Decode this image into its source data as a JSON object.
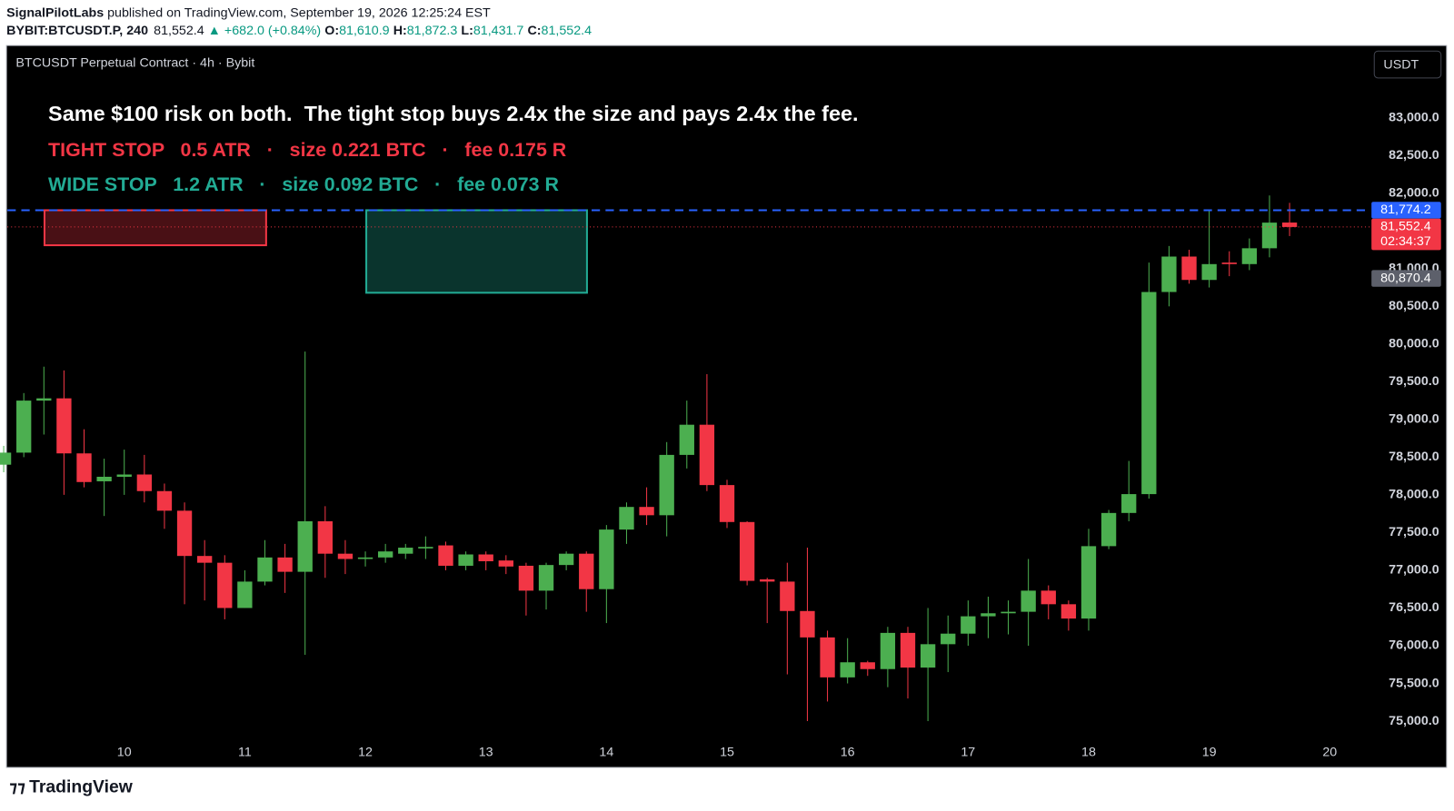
{
  "header": {
    "author": "SignalPilotLabs",
    "published": " published on TradingView.com, September 19, 2026 12:25:24 EST",
    "symbol": "BYBIT:BTCUSDT.P, 240",
    "last": "81,552.4",
    "change": "▲ +682.0 (+0.84%)",
    "ohlc": [
      {
        "label": "O:",
        "value": "81,610.9"
      },
      {
        "label": "H:",
        "value": "81,872.3"
      },
      {
        "label": "L:",
        "value": "81,431.7"
      },
      {
        "label": "C:",
        "value": "81,552.4"
      }
    ]
  },
  "chart_data": {
    "type": "candlestick",
    "title": "BTCUSDT Perpetual Contract · 4h · Bybit",
    "currency": "USDT",
    "categories": [
      null,
      null,
      null,
      null,
      null,
      null,
      "10",
      null,
      null,
      null,
      null,
      null,
      "11",
      null,
      null,
      null,
      null,
      null,
      "12",
      null,
      null,
      null,
      null,
      null,
      "13",
      null,
      null,
      null,
      null,
      null,
      "14",
      null,
      null,
      null,
      null,
      null,
      "15",
      null,
      null,
      null,
      null,
      null,
      "16",
      null,
      null,
      null,
      null,
      null,
      "17",
      null,
      null,
      null,
      null,
      null,
      "18",
      null,
      null,
      null,
      null,
      null,
      "19",
      null,
      null,
      null,
      null,
      null,
      "20"
    ],
    "open": [
      78400,
      78560,
      79250,
      79280,
      78550,
      78180,
      78240,
      78270,
      78050,
      77790,
      77190,
      77100,
      76500,
      76850,
      77170,
      76980,
      77650,
      77220,
      77150,
      77170,
      77220,
      77290,
      77330,
      77060,
      77210,
      77130,
      77060,
      76730,
      77070,
      77220,
      76750,
      77540,
      77840,
      77730,
      78530,
      78930,
      78130,
      77640,
      76880,
      76850,
      76460,
      76110,
      75580,
      75780,
      75690,
      76170,
      75710,
      76020,
      76160,
      76390,
      76430,
      76450,
      76730,
      76550,
      76360,
      77320,
      77760,
      78010,
      80690,
      81160,
      80850,
      81080,
      81060,
      81270,
      81610.9,
      null,
      null
    ],
    "high": [
      78650,
      79350,
      79700,
      79650,
      78870,
      78480,
      78600,
      78530,
      78150,
      77900,
      77400,
      77200,
      77000,
      77400,
      77350,
      79900,
      77850,
      77400,
      77250,
      77350,
      77350,
      77450,
      77380,
      77250,
      77250,
      77200,
      77100,
      77100,
      77250,
      77250,
      77600,
      77900,
      78100,
      78700,
      79250,
      79600,
      78200,
      77650,
      76900,
      77100,
      77300,
      76200,
      76100,
      75800,
      76250,
      76250,
      76500,
      76400,
      76600,
      76650,
      76600,
      77150,
      76800,
      76600,
      77550,
      77800,
      78450,
      81080,
      81300,
      81250,
      81770,
      81230,
      81400,
      81970,
      81872.3,
      null,
      null
    ],
    "low": [
      78300,
      78500,
      78800,
      78000,
      78100,
      77720,
      78000,
      77900,
      77550,
      76550,
      76600,
      76350,
      76500,
      76800,
      76700,
      75880,
      76900,
      76950,
      77050,
      77100,
      77150,
      77150,
      77000,
      77000,
      77000,
      76950,
      76400,
      76480,
      77000,
      76450,
      76300,
      77350,
      77600,
      77450,
      78350,
      78050,
      77560,
      76800,
      76300,
      75620,
      75000,
      75260,
      75500,
      75600,
      75450,
      75300,
      75000,
      75650,
      76000,
      76100,
      76150,
      76000,
      76350,
      76200,
      76200,
      77280,
      77650,
      77950,
      80500,
      80800,
      80750,
      80900,
      80980,
      81150,
      81431.7,
      null,
      null
    ],
    "close": [
      78560,
      79250,
      79280,
      78550,
      78170,
      78240,
      78270,
      78050,
      77790,
      77190,
      77100,
      76500,
      76850,
      77170,
      76980,
      77650,
      77220,
      77150,
      77170,
      77250,
      77300,
      77310,
      77060,
      77210,
      77120,
      77050,
      76730,
      77070,
      77220,
      76750,
      77540,
      77840,
      77730,
      78530,
      78930,
      78130,
      77640,
      76860,
      76850,
      76460,
      76110,
      75580,
      75780,
      75690,
      76170,
      75710,
      76020,
      76160,
      76390,
      76430,
      76450,
      76730,
      76550,
      76360,
      77320,
      77760,
      78010,
      80690,
      81160,
      80850,
      81060,
      81060,
      81270,
      81610,
      81552.4,
      null,
      null
    ],
    "up_color": "#4caf50",
    "down_color": "#f23645",
    "ylim": [
      74386,
      83946
    ],
    "yticks": [
      {
        "value": 75000,
        "label": "75,000.0"
      },
      {
        "value": 75500,
        "label": "75,500.0"
      },
      {
        "value": 76000,
        "label": "76,000.0"
      },
      {
        "value": 76500,
        "label": "76,500.0"
      },
      {
        "value": 77000,
        "label": "77,000.0"
      },
      {
        "value": 77500,
        "label": "77,500.0"
      },
      {
        "value": 78000,
        "label": "78,000.0"
      },
      {
        "value": 78500,
        "label": "78,500.0"
      },
      {
        "value": 79000,
        "label": "79,000.0"
      },
      {
        "value": 79500,
        "label": "79,500.0"
      },
      {
        "value": 80000,
        "label": "80,000.0"
      },
      {
        "value": 80500,
        "label": "80,500.0"
      },
      {
        "value": 81000,
        "label": "81,000.0"
      },
      {
        "value": 81500,
        "label": "81,500.0"
      },
      {
        "value": 82000,
        "label": "82,000.0"
      },
      {
        "value": 82500,
        "label": "82,500.0"
      },
      {
        "value": 83000,
        "label": "83,000.0"
      }
    ],
    "price_lines": [
      {
        "value": 81774.2,
        "label": "81,774.2",
        "color": "#2962ff",
        "line": "dashed"
      },
      {
        "value": 81552.4,
        "label": "81,552.4",
        "color": "#f23645",
        "line": "dotted",
        "countdown": "02:34:37"
      },
      {
        "value": 80870.4,
        "label": "80,870.4",
        "color": "#5d606b"
      }
    ],
    "zones": [
      {
        "top": 81774.2,
        "bottom": 81310,
        "color": "#f23645"
      },
      {
        "top": 81774.2,
        "bottom": 80680,
        "color": "#22ab94"
      }
    ],
    "annotation": {
      "headline": "Same $100 risk on both.  The tight stop buys 2.4x the size and pays 2.4x the fee.",
      "rows": [
        {
          "text": "TIGHT STOP   0.5 ATR   ·   size 0.221 BTC   ·   fee 0.175 R",
          "color": "#f23645"
        },
        {
          "text": "WIDE STOP   1.2 ATR   ·   size 0.092 BTC   ·   fee 0.073 R",
          "color": "#22ab94"
        }
      ]
    }
  },
  "footer": {
    "brand": "TradingView"
  }
}
